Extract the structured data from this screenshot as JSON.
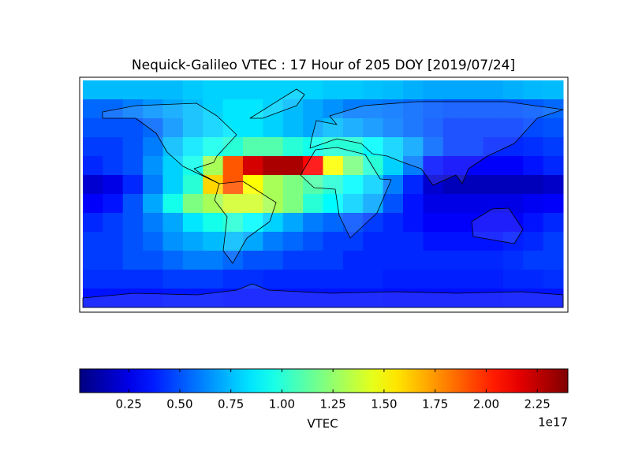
{
  "chart_data": {
    "type": "heatmap",
    "title": "Nequick-Galileo VTEC : 17 Hour of 205 DOY [2019/07/24]",
    "colormap": "jet",
    "colorbar_label": "VTEC",
    "colorbar_offset": "1e17",
    "clim": [
      0.01,
      2.4
    ],
    "cticks": [
      0.25,
      {
        "value": 0.5,
        "label": "0.50"
      },
      0.75,
      {
        "value": 1.0,
        "label": "1.00"
      },
      1.25,
      {
        "value": 1.5,
        "label": "1.50"
      },
      1.75,
      {
        "value": 2.0,
        "label": "2.00"
      },
      2.25
    ],
    "z": [
      [
        0.75,
        0.75,
        0.75,
        0.75,
        0.75,
        0.78,
        0.8,
        0.8,
        0.8,
        0.8,
        0.8,
        0.8,
        0.78,
        0.78,
        0.76,
        0.75,
        0.72,
        0.7,
        0.7,
        0.7,
        0.7,
        0.72,
        0.74,
        0.75
      ],
      [
        0.55,
        0.55,
        0.6,
        0.65,
        0.7,
        0.75,
        0.8,
        0.85,
        0.85,
        0.8,
        0.75,
        0.7,
        0.65,
        0.6,
        0.6,
        0.58,
        0.55,
        0.52,
        0.5,
        0.5,
        0.5,
        0.5,
        0.52,
        0.55
      ],
      [
        0.5,
        0.5,
        0.5,
        0.55,
        0.65,
        0.75,
        0.8,
        0.85,
        0.85,
        0.8,
        0.75,
        0.7,
        0.75,
        0.7,
        0.65,
        0.6,
        0.55,
        0.5,
        0.45,
        0.45,
        0.45,
        0.45,
        0.48,
        0.5
      ],
      [
        0.45,
        0.45,
        0.5,
        0.6,
        0.75,
        0.85,
        0.95,
        1.0,
        1.1,
        1.1,
        1.0,
        0.95,
        1.0,
        1.0,
        0.9,
        0.8,
        0.7,
        0.55,
        0.45,
        0.45,
        0.4,
        0.4,
        0.42,
        0.45
      ],
      [
        0.4,
        0.45,
        0.5,
        0.65,
        0.8,
        0.95,
        1.3,
        1.9,
        2.2,
        2.3,
        2.3,
        2.1,
        1.5,
        1.2,
        1.0,
        0.8,
        0.6,
        0.35,
        0.3,
        0.3,
        0.3,
        0.3,
        0.35,
        0.4
      ],
      [
        0.2,
        0.25,
        0.4,
        0.6,
        0.8,
        1.0,
        1.6,
        1.9,
        1.5,
        1.3,
        1.2,
        1.1,
        1.0,
        0.9,
        0.8,
        0.6,
        0.4,
        0.2,
        0.15,
        0.15,
        0.15,
        0.15,
        0.15,
        0.18
      ],
      [
        0.3,
        0.35,
        0.5,
        0.7,
        0.95,
        1.2,
        1.3,
        1.4,
        1.4,
        1.3,
        1.2,
        1.0,
        0.9,
        0.8,
        0.7,
        0.5,
        0.35,
        0.25,
        0.25,
        0.25,
        0.25,
        0.25,
        0.28,
        0.3
      ],
      [
        0.4,
        0.45,
        0.5,
        0.6,
        0.7,
        0.85,
        0.95,
        1.0,
        0.9,
        0.8,
        0.7,
        0.6,
        0.55,
        0.5,
        0.45,
        0.4,
        0.35,
        0.3,
        0.3,
        0.3,
        0.3,
        0.3,
        0.35,
        0.4
      ],
      [
        0.45,
        0.45,
        0.5,
        0.55,
        0.65,
        0.7,
        0.75,
        0.75,
        0.7,
        0.6,
        0.55,
        0.5,
        0.45,
        0.45,
        0.4,
        0.4,
        0.4,
        0.35,
        0.35,
        0.35,
        0.35,
        0.38,
        0.4,
        0.45
      ],
      [
        0.45,
        0.45,
        0.5,
        0.5,
        0.55,
        0.6,
        0.6,
        0.55,
        0.5,
        0.5,
        0.45,
        0.45,
        0.45,
        0.4,
        0.4,
        0.4,
        0.4,
        0.4,
        0.4,
        0.4,
        0.4,
        0.42,
        0.45,
        0.45
      ],
      [
        0.42,
        0.42,
        0.42,
        0.42,
        0.45,
        0.45,
        0.45,
        0.42,
        0.42,
        0.4,
        0.4,
        0.4,
        0.4,
        0.4,
        0.4,
        0.38,
        0.38,
        0.38,
        0.38,
        0.38,
        0.38,
        0.4,
        0.4,
        0.42
      ],
      [
        0.35,
        0.35,
        0.35,
        0.35,
        0.36,
        0.36,
        0.36,
        0.35,
        0.35,
        0.35,
        0.35,
        0.35,
        0.35,
        0.35,
        0.35,
        0.34,
        0.34,
        0.34,
        0.34,
        0.34,
        0.34,
        0.35,
        0.35,
        0.35
      ]
    ]
  }
}
